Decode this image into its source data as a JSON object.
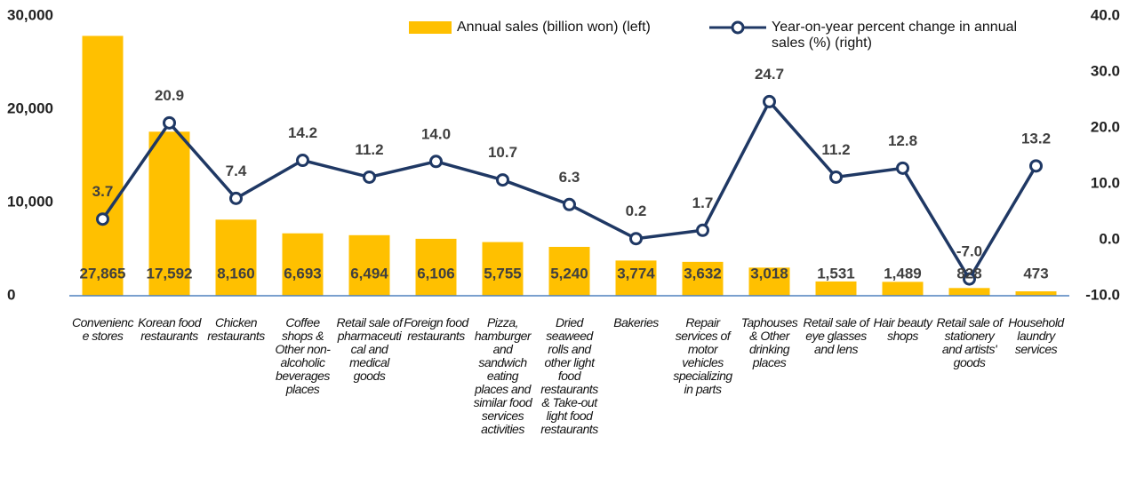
{
  "chart_data": {
    "type": "bar_line",
    "categories": [
      "Convenience stores",
      "Korean food restaurants",
      "Chicken restaurants",
      "Coffee shops & Other non-alcoholic beverages places",
      "Retail sale of pharmaceutical and medical goods",
      "Foreign food restaurants",
      "Pizza, hamburger and sandwich eating places and similar food services activities",
      "Dried seaweed rolls and other light food restaurants & Take-out light food restaurants",
      "Bakeries",
      "Repair services of motor vehicles specializing in parts",
      "Taphouses & Other drinking places",
      "Retail sale of eye glasses and lens",
      "Hair beauty shops",
      "Retail sale of stationery and artists' goods",
      "Household laundry services"
    ],
    "series": [
      {
        "name": "Annual sales (billion won) (left)",
        "color": "#ffc000",
        "axis": "y",
        "values": [
          27865,
          17592,
          8160,
          6693,
          6494,
          6106,
          5755,
          5240,
          3774,
          3632,
          3018,
          1531,
          1489,
          828,
          473
        ],
        "value_labels": [
          "27,865",
          "17,592",
          "8,160",
          "6,693",
          "6,494",
          "6,106",
          "5,755",
          "5,240",
          "3,774",
          "3,632",
          "3,018",
          "1,531",
          "1,489",
          "828",
          "473"
        ]
      },
      {
        "name": "Year-on-year percent change in annual sales (%) (right)",
        "color": "#1f3864",
        "axis": "y2",
        "values": [
          3.7,
          20.9,
          7.4,
          14.2,
          11.2,
          14.0,
          10.7,
          6.3,
          0.2,
          1.7,
          24.7,
          11.2,
          12.8,
          -7.0,
          13.2
        ],
        "value_labels": [
          "3.7",
          "20.9",
          "7.4",
          "14.2",
          "11.2",
          "14.0",
          "10.7",
          "6.3",
          "0.2",
          "1.7",
          "24.7",
          "11.2",
          "12.8",
          "-7.0",
          "13.2"
        ]
      }
    ],
    "ylim": [
      0,
      30000
    ],
    "yticks": [
      {
        "value": 0,
        "label": "0"
      },
      {
        "value": 10000,
        "label": "10,000"
      },
      {
        "value": 20000,
        "label": "20,000"
      },
      {
        "value": 30000,
        "label": "30,000"
      }
    ],
    "y2lim": [
      -10,
      40
    ],
    "y2ticks": [
      {
        "value": -10,
        "label": "-10.0"
      },
      {
        "value": 0,
        "label": "0.0"
      },
      {
        "value": 10,
        "label": "10.0"
      },
      {
        "value": 20,
        "label": "20.0"
      },
      {
        "value": 30,
        "label": "30.0"
      },
      {
        "value": 40,
        "label": "40.0"
      }
    ],
    "grid": false
  }
}
